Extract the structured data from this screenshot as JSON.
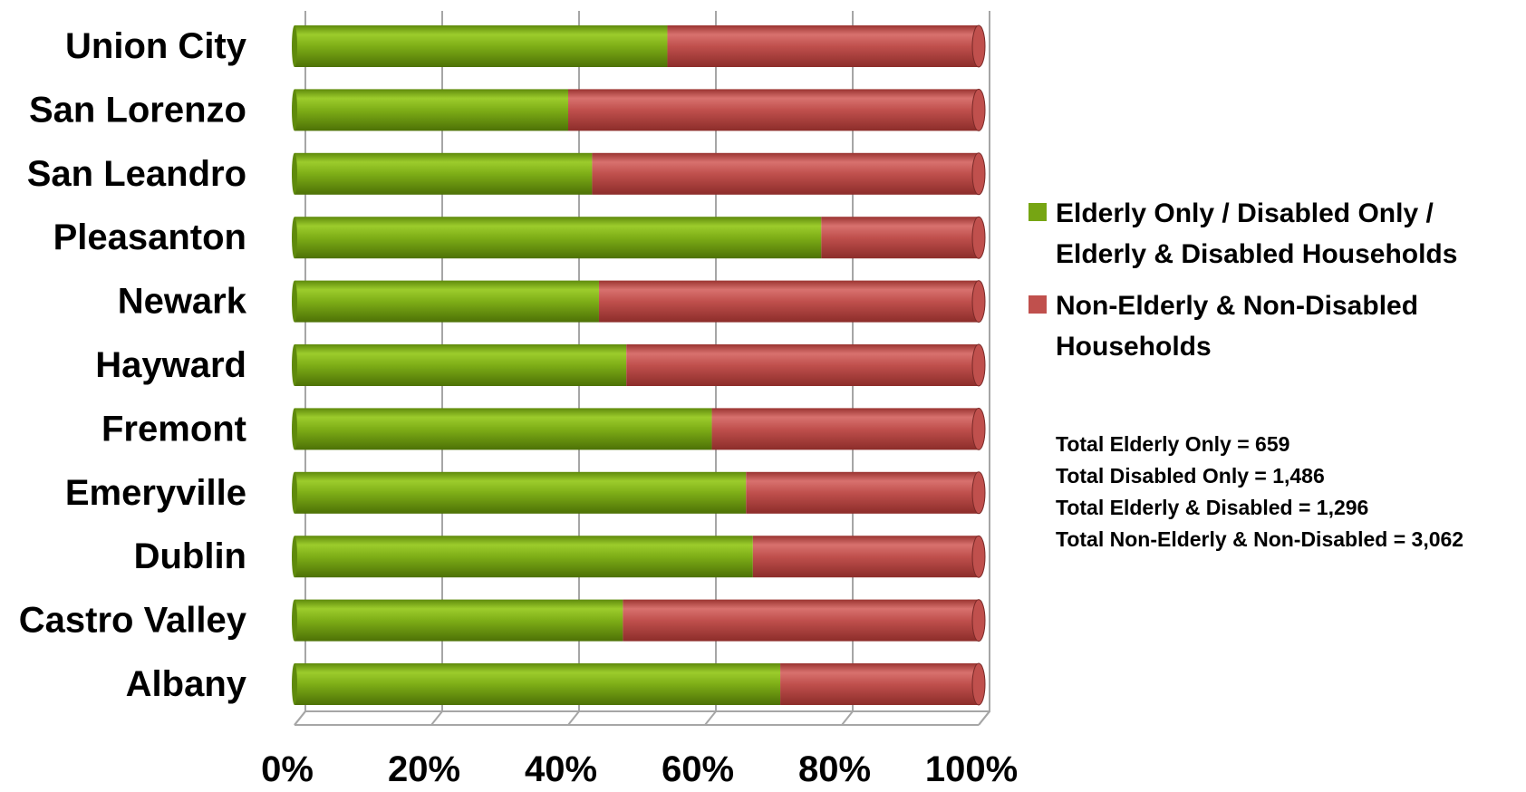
{
  "chart_data": {
    "type": "bar",
    "orientation": "horizontal",
    "stacked": "100%",
    "categories": [
      "Union City",
      "San Lorenzo",
      "San Leandro",
      "Pleasanton",
      "Newark",
      "Hayward",
      "Fremont",
      "Emeryville",
      "Dublin",
      "Castro Valley",
      "Albany"
    ],
    "series": [
      {
        "name": "Elderly Only / Disabled Only / Elderly & Disabled Households",
        "color": "#76a513",
        "values": [
          54.5,
          40,
          43.5,
          77,
          44.5,
          48.5,
          61,
          66,
          67,
          48,
          71
        ]
      },
      {
        "name": "Non-Elderly & Non-Disabled Households",
        "color": "#c0504d",
        "values": [
          45.5,
          60,
          56.5,
          23,
          55.5,
          51.5,
          39,
          34,
          33,
          52,
          29
        ]
      }
    ],
    "xlim": [
      0,
      100
    ],
    "x_ticks": [
      "0%",
      "20%",
      "40%",
      "60%",
      "80%",
      "100%"
    ],
    "grid": "vertical",
    "legend_position": "right",
    "title": "",
    "xlabel": "",
    "ylabel": ""
  },
  "totals": [
    "Total Elderly Only = 659",
    "Total Disabled Only = 1,486",
    "Total Elderly & Disabled = 1,296",
    "Total Non-Elderly & Non-Disabled = 3,062"
  ]
}
